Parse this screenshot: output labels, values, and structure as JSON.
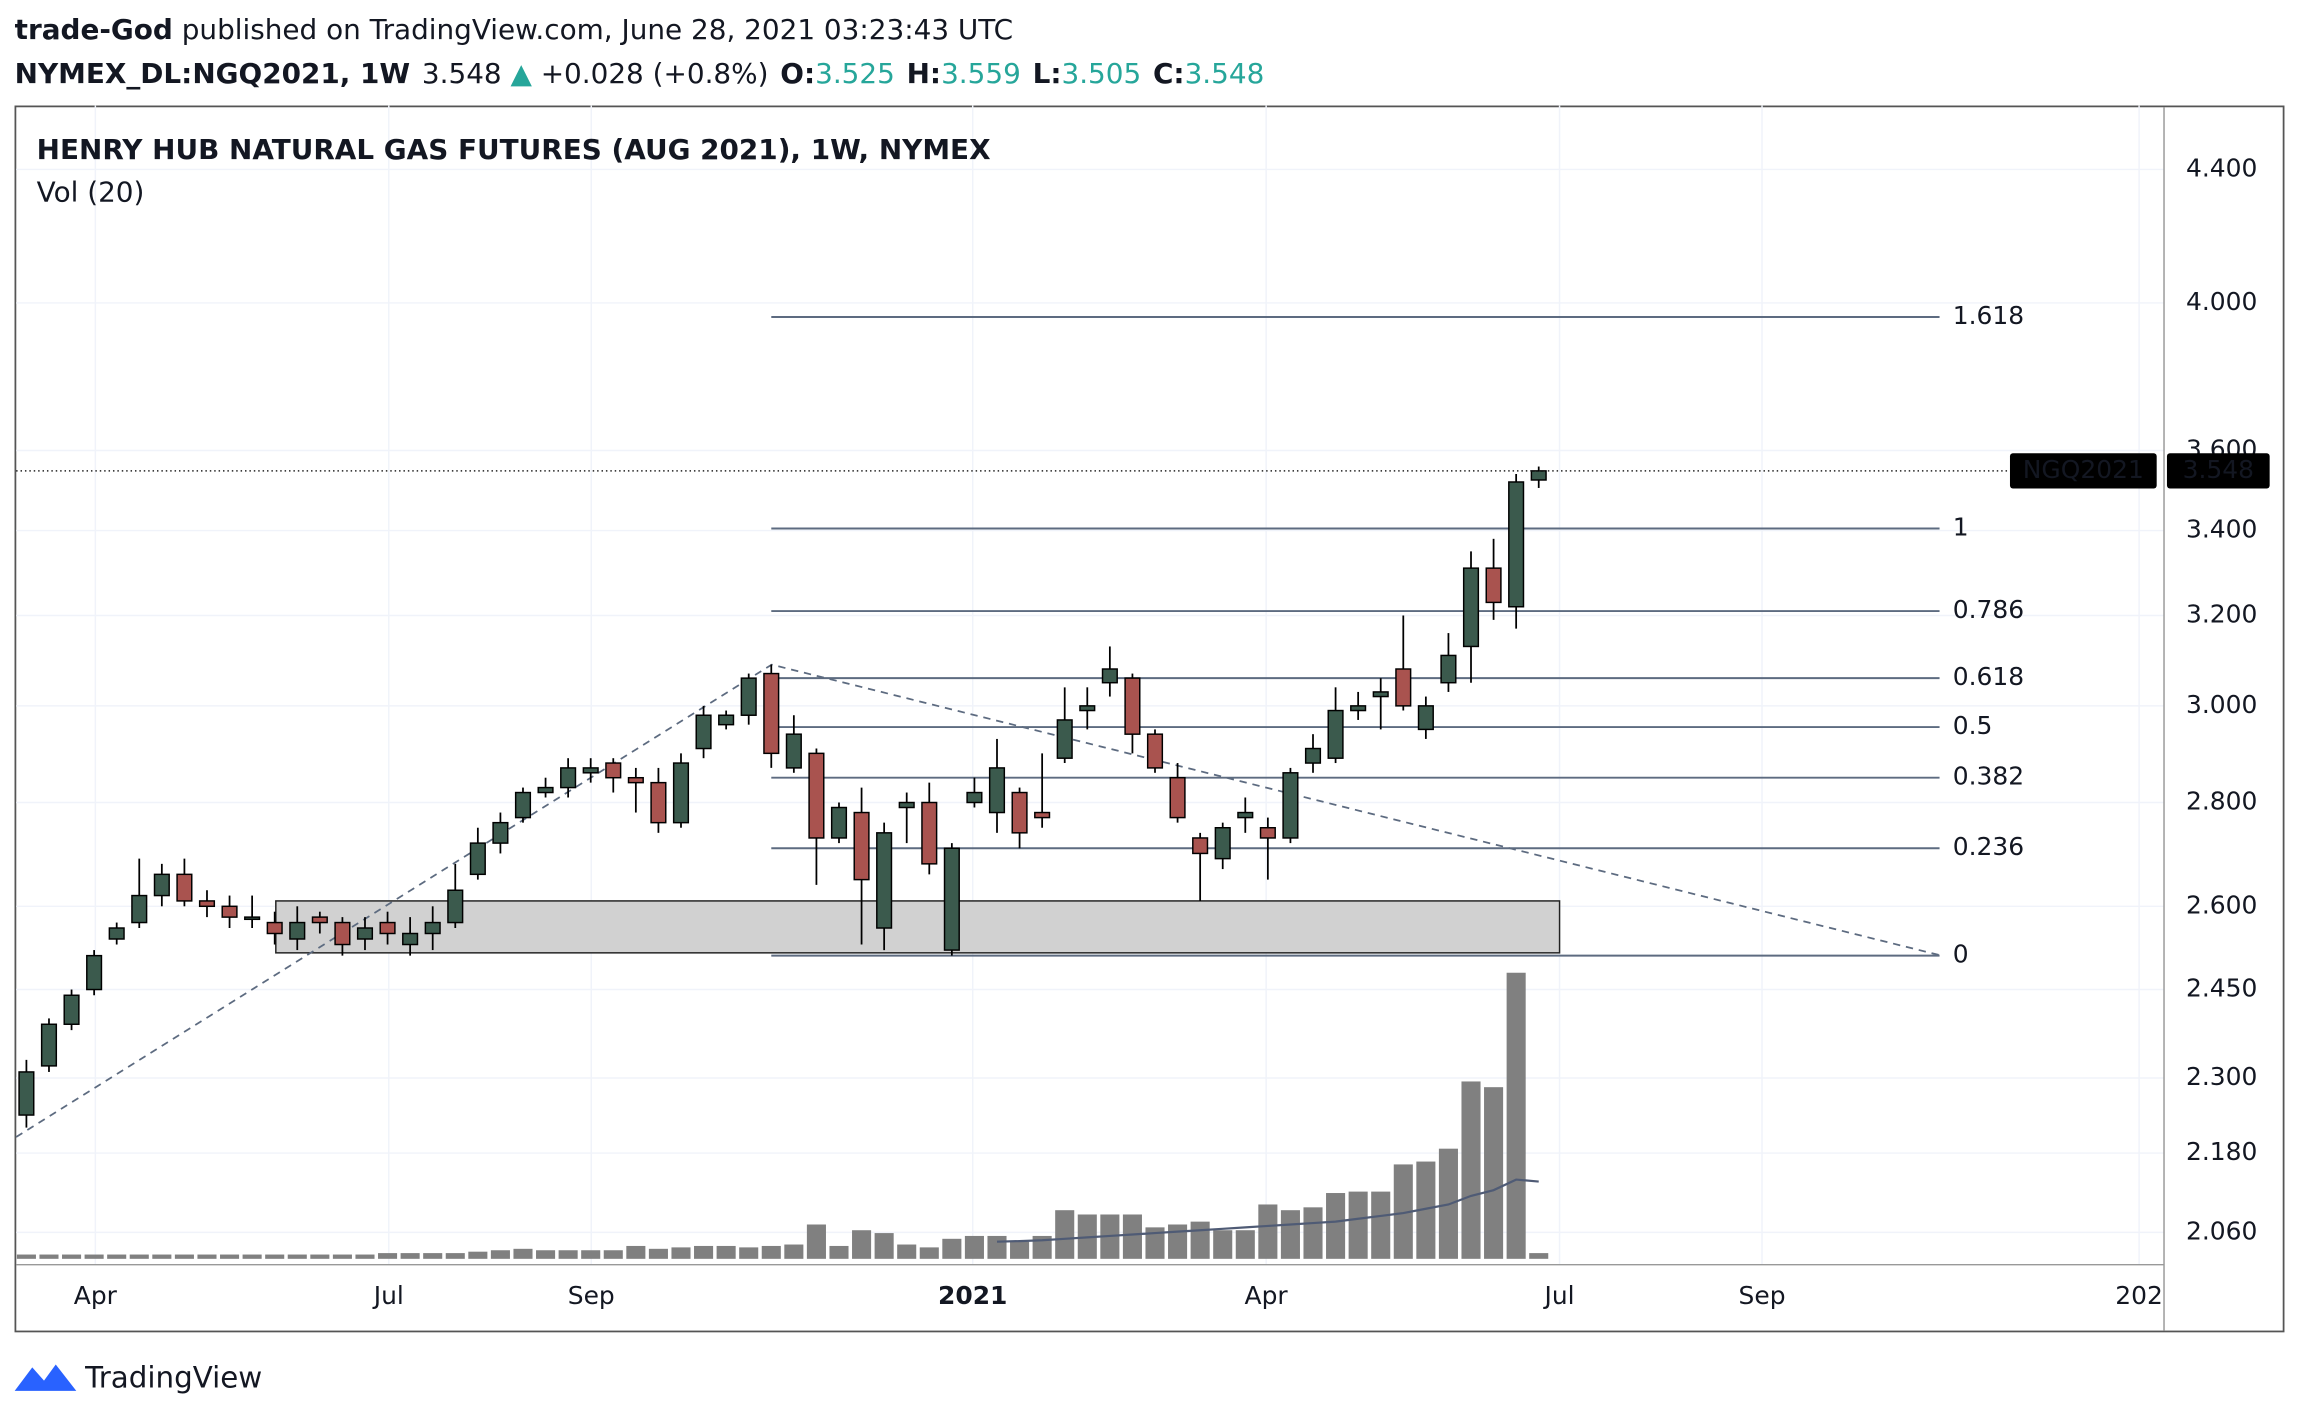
{
  "header": {
    "author": "trade-God",
    "published": " published on TradingView.com, June 28, 2021 03:23:43 UTC",
    "symbol": "NYMEX_DL:NGQ2021, 1W",
    "last": 3.548,
    "arrow": "▲",
    "change": "+0.028 (+0.8%)",
    "ohlc": [
      {
        "label": "O:",
        "value": 3.525
      },
      {
        "label": "H:",
        "value": 3.559
      },
      {
        "label": "L:",
        "value": 3.505
      },
      {
        "label": "C:",
        "value": 3.548
      }
    ]
  },
  "chart_data": {
    "type": "candlestick",
    "title": "HENRY HUB NATURAL GAS FUTURES (AUG 2021), 1W, NYMEX",
    "indicator": "Vol (20)",
    "log_scale": true,
    "grid": true,
    "up_color": "#3b5a4d",
    "down_color": "#a9534f",
    "volume_color": "#808080",
    "ma_color": "#4f5b75",
    "ylim": [
      2.013,
      4.605
    ],
    "yticks": [
      {
        "value": 4.4,
        "label": "4.400"
      },
      {
        "value": 4.0,
        "label": "4.000"
      },
      {
        "value": 3.6,
        "label": "3.600"
      },
      {
        "value": 3.4,
        "label": "3.400"
      },
      {
        "value": 3.2,
        "label": "3.200"
      },
      {
        "value": 3.0,
        "label": "3.000"
      },
      {
        "value": 2.8,
        "label": "2.800"
      },
      {
        "value": 2.6,
        "label": "2.600"
      },
      {
        "value": 2.45,
        "label": "2.450"
      },
      {
        "value": 2.3,
        "label": "2.300"
      },
      {
        "value": 2.18,
        "label": "2.180"
      },
      {
        "value": 2.06,
        "label": "2.060"
      }
    ],
    "x_labels": [
      "Apr",
      "Jul",
      "Sep",
      "2021",
      "Apr",
      "Jul",
      "Sep",
      "202"
    ],
    "open": [
      2.24,
      2.32,
      2.39,
      2.45,
      2.54,
      2.57,
      2.62,
      2.66,
      2.61,
      2.6,
      2.58,
      2.57,
      2.54,
      2.58,
      2.57,
      2.54,
      2.57,
      2.53,
      2.55,
      2.57,
      2.66,
      2.72,
      2.77,
      2.82,
      2.83,
      2.86,
      2.88,
      2.85,
      2.84,
      2.76,
      2.91,
      2.96,
      2.98,
      3.07,
      2.87,
      2.9,
      2.73,
      2.78,
      2.56,
      2.79,
      2.8,
      2.52,
      2.8,
      2.78,
      2.82,
      2.78,
      2.89,
      2.99,
      3.05,
      3.06,
      2.94,
      2.85,
      2.73,
      2.69,
      2.77,
      2.75,
      2.73,
      2.88,
      2.89,
      2.99,
      3.02,
      3.08,
      2.95,
      3.05,
      3.13,
      3.31,
      3.22,
      3.525
    ],
    "high": [
      2.33,
      2.4,
      2.45,
      2.52,
      2.57,
      2.69,
      2.68,
      2.69,
      2.63,
      2.62,
      2.62,
      2.59,
      2.6,
      2.59,
      2.58,
      2.58,
      2.59,
      2.58,
      2.6,
      2.68,
      2.75,
      2.78,
      2.83,
      2.85,
      2.89,
      2.89,
      2.89,
      2.87,
      2.87,
      2.9,
      3.0,
      2.99,
      3.07,
      3.09,
      2.98,
      2.91,
      2.8,
      2.83,
      2.76,
      2.82,
      2.84,
      2.72,
      2.85,
      2.93,
      2.83,
      2.9,
      3.04,
      3.04,
      3.13,
      3.07,
      2.95,
      2.88,
      2.74,
      2.76,
      2.81,
      2.77,
      2.87,
      2.94,
      3.04,
      3.03,
      3.06,
      3.2,
      3.02,
      3.16,
      3.35,
      3.38,
      3.54,
      3.559
    ],
    "low": [
      2.22,
      2.31,
      2.38,
      2.44,
      2.53,
      2.56,
      2.6,
      2.6,
      2.58,
      2.56,
      2.56,
      2.53,
      2.52,
      2.55,
      2.51,
      2.52,
      2.53,
      2.51,
      2.52,
      2.56,
      2.65,
      2.7,
      2.76,
      2.81,
      2.81,
      2.84,
      2.82,
      2.78,
      2.74,
      2.75,
      2.89,
      2.95,
      2.96,
      2.87,
      2.86,
      2.64,
      2.72,
      2.53,
      2.52,
      2.72,
      2.66,
      2.51,
      2.79,
      2.74,
      2.71,
      2.75,
      2.88,
      2.95,
      3.02,
      2.9,
      2.86,
      2.76,
      2.61,
      2.67,
      2.74,
      2.65,
      2.72,
      2.86,
      2.88,
      2.97,
      2.95,
      2.99,
      2.93,
      3.03,
      3.05,
      3.19,
      3.17,
      3.505
    ],
    "close": [
      2.31,
      2.39,
      2.44,
      2.51,
      2.56,
      2.62,
      2.66,
      2.61,
      2.6,
      2.58,
      2.58,
      2.55,
      2.57,
      2.57,
      2.53,
      2.56,
      2.55,
      2.55,
      2.57,
      2.63,
      2.72,
      2.76,
      2.82,
      2.83,
      2.87,
      2.87,
      2.85,
      2.84,
      2.76,
      2.88,
      2.98,
      2.98,
      3.06,
      2.9,
      2.94,
      2.73,
      2.79,
      2.65,
      2.74,
      2.8,
      2.68,
      2.71,
      2.82,
      2.87,
      2.74,
      2.77,
      2.97,
      3.0,
      3.08,
      2.94,
      2.87,
      2.77,
      2.7,
      2.75,
      2.78,
      2.73,
      2.86,
      2.91,
      2.99,
      3.0,
      3.03,
      3.0,
      3.0,
      3.11,
      3.31,
      3.23,
      3.52,
      3.548
    ],
    "volume_ylim": [
      0,
      100
    ],
    "volume": [
      1.5,
      1.5,
      1.5,
      1.5,
      1.5,
      1.5,
      1.5,
      1.5,
      1.5,
      1.5,
      1.5,
      1.5,
      1.5,
      1.5,
      1.5,
      1.5,
      2,
      2,
      2,
      2,
      2.5,
      3,
      3.5,
      3,
      3,
      3,
      3,
      4.5,
      3.5,
      4,
      4.5,
      4.5,
      4,
      4.5,
      5,
      12,
      4.5,
      10,
      9,
      5,
      4,
      7,
      8,
      8,
      6,
      8,
      17,
      15.5,
      15.5,
      15.5,
      11,
      12,
      13,
      10,
      10,
      19,
      17,
      18,
      23,
      23.5,
      23.5,
      33,
      34,
      38.5,
      62,
      60,
      100,
      2
    ],
    "volume_ma": [
      null,
      null,
      null,
      null,
      null,
      null,
      null,
      null,
      null,
      null,
      null,
      null,
      null,
      null,
      null,
      null,
      null,
      null,
      null,
      null,
      null,
      null,
      null,
      null,
      null,
      null,
      null,
      null,
      null,
      null,
      null,
      null,
      null,
      null,
      null,
      null,
      null,
      null,
      null,
      null,
      null,
      null,
      null,
      6,
      6.2,
      6.5,
      7,
      7.5,
      8,
      8.5,
      9,
      9.5,
      10,
      10.5,
      11,
      11.5,
      12,
      12.5,
      13,
      14,
      15,
      16,
      17.5,
      19,
      22,
      24,
      27.7,
      27
    ],
    "fib": [
      {
        "level": 1.618,
        "price": 3.96
      },
      {
        "level": 1,
        "price": 3.405
      },
      {
        "level": 0.786,
        "price": 3.21
      },
      {
        "level": 0.618,
        "price": 3.06
      },
      {
        "level": 0.5,
        "price": 2.955
      },
      {
        "level": 0.382,
        "price": 2.85
      },
      {
        "level": 0.236,
        "price": 2.71
      },
      {
        "level": 0,
        "price": 2.51
      }
    ],
    "fib_color": "#5d6b80",
    "zone": {
      "top": 2.61,
      "bottom": 2.515
    },
    "symbol_tag": "NGQ2021"
  },
  "footer": {
    "brand": "TradingView"
  }
}
